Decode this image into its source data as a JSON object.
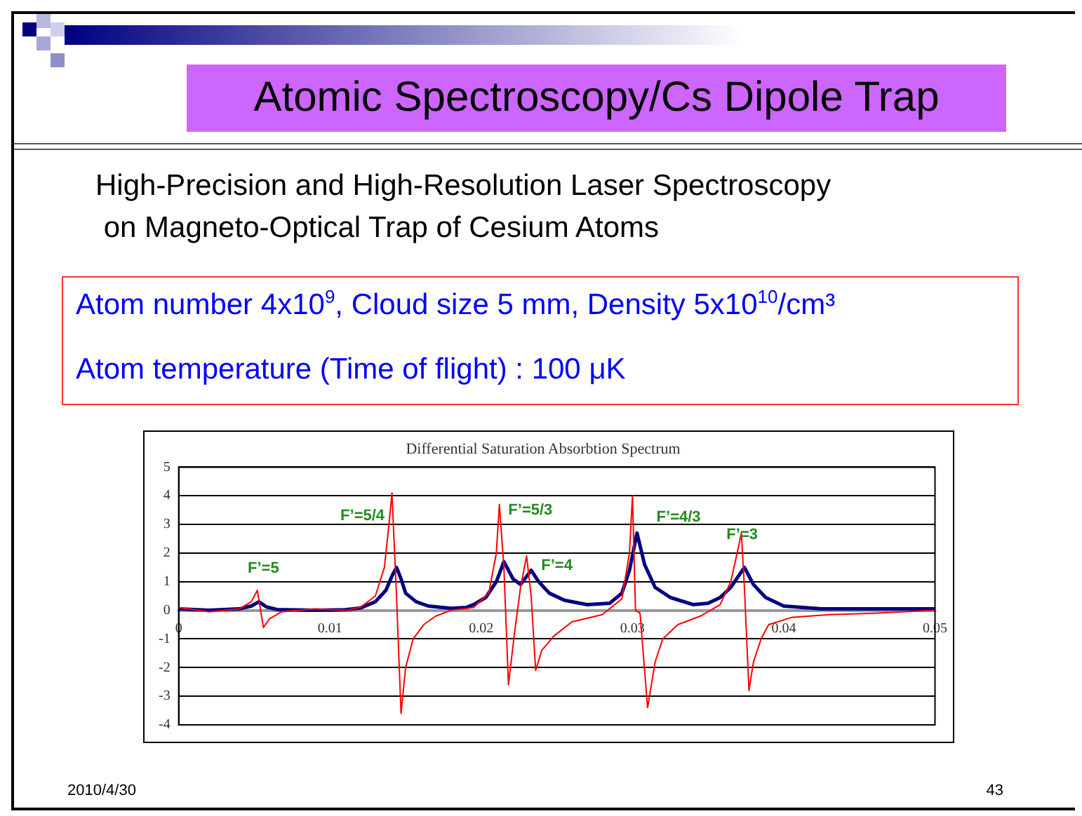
{
  "chart_data": {
    "type": "line",
    "title": "Atomic Spectroscopy/Cs Dipole Trap",
    "subtitle": "High-Precision and High-Resolution Laser Spectroscopy\n on Magneto-Optical Trap of Cesium Atoms",
    "annotations": [
      "Atom number  4x10$^{9}$,   Cloud size 5 mm, Density 5x10$^{10}$/cm³",
      "Atom temperature (Time of flight) : 100 μK",
      "Differential Saturation Absorbtion Spectrum",
      "2010/4/30",
      "43",
      "F’=5",
      "F’=5/4",
      "F’=5/3",
      "F’=4",
      "F’=4/3",
      "F’=3"
    ],
    "series": [
      {
        "color": "#ff0000",
        "x": [
          0,
          0.002,
          0.004,
          0.0048,
          0.0052,
          0.0056,
          0.006,
          0.0068,
          0.009,
          0.011,
          0.012,
          0.013,
          0.0136,
          0.0139,
          0.0141,
          0.0144,
          0.0147,
          0.015,
          0.0155,
          0.0162,
          0.017,
          0.018,
          0.0195,
          0.0205,
          0.021,
          0.0212,
          0.0215,
          0.0218,
          0.0222,
          0.0226,
          0.023,
          0.0233,
          0.0236,
          0.024,
          0.0248,
          0.026,
          0.028,
          0.0293,
          0.0298,
          0.03,
          0.0302,
          0.0305,
          0.031,
          0.0315,
          0.032,
          0.033,
          0.0345,
          0.0358,
          0.0365,
          0.037,
          0.0372,
          0.0374,
          0.0377,
          0.038,
          0.0385,
          0.039,
          0.0405,
          0.043,
          0.046,
          0.05
        ],
        "values": [
          0.1,
          -0.05,
          0.05,
          0.3,
          0.7,
          -0.6,
          -0.3,
          -0.05,
          0.05,
          0,
          0.1,
          0.5,
          1.5,
          3.0,
          4.1,
          0.5,
          -3.6,
          -2.0,
          -1.0,
          -0.5,
          -0.2,
          0,
          0.1,
          0.6,
          2.0,
          3.7,
          1.5,
          -2.6,
          -0.8,
          0.8,
          1.9,
          0.5,
          -2.1,
          -1.4,
          -0.9,
          -0.4,
          -0.15,
          0.4,
          2.0,
          4.0,
          0,
          -0.1,
          -3.4,
          -1.8,
          -1.0,
          -0.5,
          -0.2,
          0.2,
          1.0,
          2.2,
          2.7,
          0.8,
          -2.8,
          -1.8,
          -1.0,
          -0.5,
          -0.25,
          -0.15,
          -0.1,
          0
        ]
      },
      {
        "color": "#000080",
        "x": [
          0,
          0.002,
          0.004,
          0.0048,
          0.0053,
          0.0058,
          0.0065,
          0.009,
          0.011,
          0.012,
          0.013,
          0.0137,
          0.0141,
          0.0144,
          0.0147,
          0.015,
          0.0157,
          0.0165,
          0.018,
          0.019,
          0.0195,
          0.0203,
          0.021,
          0.0215,
          0.0221,
          0.0226,
          0.0233,
          0.0238,
          0.0245,
          0.0255,
          0.027,
          0.0285,
          0.0293,
          0.0298,
          0.0303,
          0.0308,
          0.0315,
          0.0325,
          0.034,
          0.035,
          0.0358,
          0.0365,
          0.0374,
          0.038,
          0.0388,
          0.04,
          0.0425,
          0.045,
          0.05
        ],
        "values": [
          0.05,
          0,
          0.05,
          0.15,
          0.3,
          0.12,
          0.03,
          0,
          0.02,
          0.08,
          0.3,
          0.7,
          1.2,
          1.5,
          1.1,
          0.6,
          0.3,
          0.15,
          0.07,
          0.1,
          0.2,
          0.45,
          1.0,
          1.7,
          1.1,
          0.9,
          1.4,
          1.0,
          0.6,
          0.35,
          0.2,
          0.25,
          0.6,
          1.4,
          2.7,
          1.6,
          0.8,
          0.45,
          0.2,
          0.25,
          0.45,
          0.8,
          1.5,
          0.9,
          0.45,
          0.15,
          0.05,
          0.05,
          0.05
        ]
      }
    ],
    "xlim": [
      0,
      0.05
    ],
    "xticks": [
      0,
      0.01,
      0.02,
      0.03,
      0.04,
      0.05
    ],
    "ylim": [
      -4,
      5
    ],
    "yticks": [
      -4,
      -3,
      -2,
      -1,
      0,
      1,
      2,
      3,
      4,
      5
    ],
    "grid": "y",
    "legend": false,
    "marker": "none",
    "line_style": "solid"
  }
}
